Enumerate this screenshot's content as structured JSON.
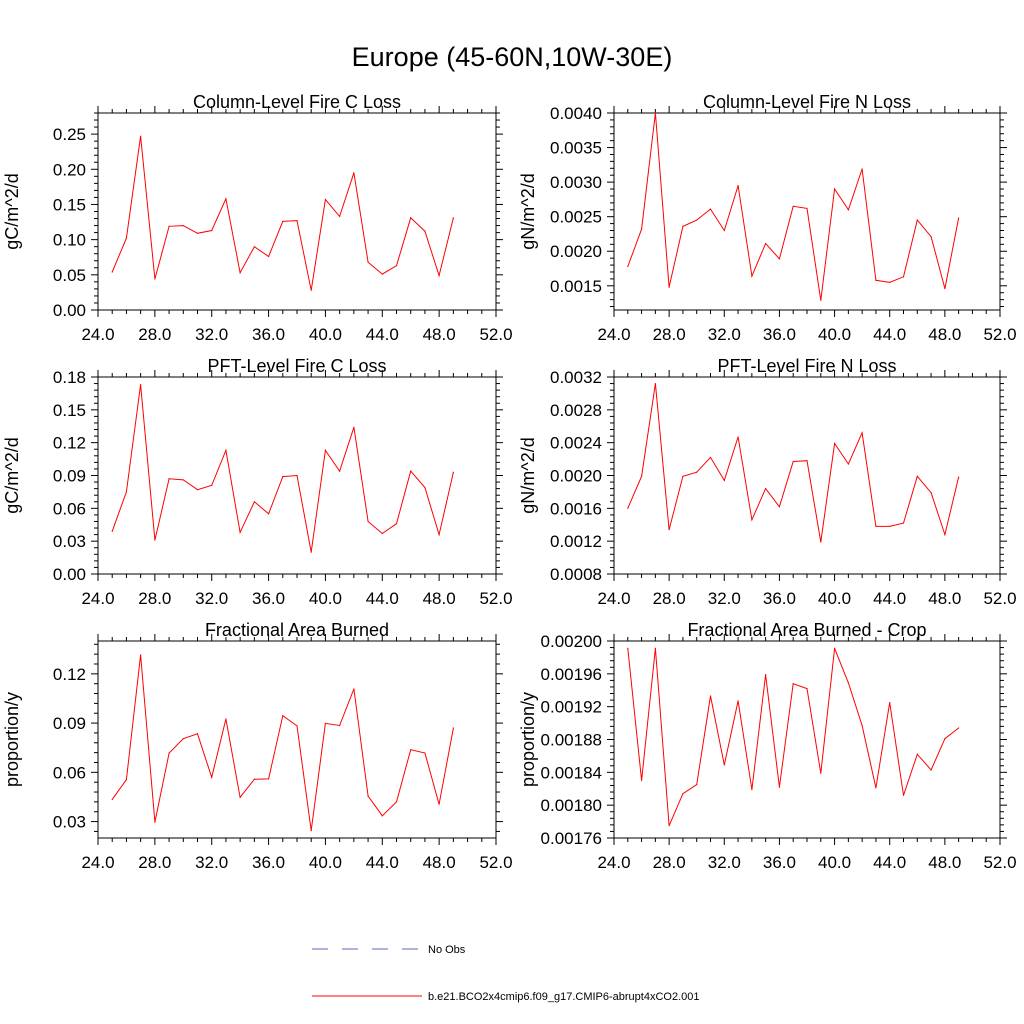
{
  "figure": {
    "title": "Europe (45-60N,10W-30E)",
    "legend": [
      {
        "label": "No Obs",
        "style": "dashed",
        "color": "#5b6bbf"
      },
      {
        "label": "b.e21.BCO2x4cmip6.f09_g17.CMIP6-abrupt4xCO2.001",
        "style": "solid",
        "color": "#ff0000"
      }
    ]
  },
  "chart_data": [
    {
      "type": "line",
      "title": "Column-Level Fire C Loss",
      "ylabel": "gC/m^2/d",
      "xlim": [
        24,
        52
      ],
      "ylim": [
        0,
        0.28
      ],
      "xticks": [
        24,
        28,
        32,
        36,
        40,
        44,
        48,
        52
      ],
      "xtick_labels": [
        "24.0",
        "28.0",
        "32.0",
        "36.0",
        "40.0",
        "44.0",
        "48.0",
        "52.0"
      ],
      "yticks": [
        0,
        0.05,
        0.1,
        0.15,
        0.2,
        0.25
      ],
      "ytick_labels": [
        "0.00",
        "0.05",
        "0.10",
        "0.15",
        "0.20",
        "0.25"
      ],
      "series": [
        {
          "name": "b.e21.BCO2x4cmip6.f09_g17.CMIP6-abrupt4xCO2.001",
          "color": "#ff0000",
          "x": [
            25,
            26,
            27,
            28,
            29,
            30,
            31,
            32,
            33,
            34,
            35,
            36,
            37,
            38,
            39,
            40,
            41,
            42,
            43,
            44,
            45,
            46,
            47,
            48,
            49
          ],
          "values": [
            0.054,
            0.102,
            0.247,
            0.044,
            0.119,
            0.12,
            0.109,
            0.113,
            0.158,
            0.053,
            0.09,
            0.076,
            0.126,
            0.127,
            0.028,
            0.157,
            0.133,
            0.195,
            0.068,
            0.051,
            0.063,
            0.131,
            0.112,
            0.049,
            0.131
          ]
        }
      ]
    },
    {
      "type": "line",
      "title": "Column-Level Fire N Loss",
      "ylabel": "gN/m^2/d",
      "xlim": [
        24,
        52
      ],
      "ylim": [
        0.00115,
        0.004
      ],
      "xticks": [
        24,
        28,
        32,
        36,
        40,
        44,
        48,
        52
      ],
      "xtick_labels": [
        "24.0",
        "28.0",
        "32.0",
        "36.0",
        "40.0",
        "44.0",
        "48.0",
        "52.0"
      ],
      "yticks": [
        0.0015,
        0.002,
        0.0025,
        0.003,
        0.0035,
        0.004
      ],
      "ytick_labels": [
        "0.0015",
        "0.0020",
        "0.0025",
        "0.0030",
        "0.0035",
        "0.0040"
      ],
      "series": [
        {
          "name": "b.e21.BCO2x4cmip6.f09_g17.CMIP6-abrupt4xCO2.001",
          "color": "#ff0000",
          "x": [
            25,
            26,
            27,
            28,
            29,
            30,
            31,
            32,
            33,
            34,
            35,
            36,
            37,
            38,
            39,
            40,
            41,
            42,
            43,
            44,
            45,
            46,
            47,
            48,
            49
          ],
          "values": [
            0.00178,
            0.00232,
            0.004,
            0.00148,
            0.00236,
            0.00245,
            0.00261,
            0.0023,
            0.00295,
            0.00164,
            0.00211,
            0.00189,
            0.00265,
            0.00262,
            0.00129,
            0.0029,
            0.0026,
            0.00319,
            0.00158,
            0.00155,
            0.00163,
            0.00245,
            0.00221,
            0.00146,
            0.00248
          ]
        }
      ]
    },
    {
      "type": "line",
      "title": "PFT-Level Fire C Loss",
      "ylabel": "gC/m^2/d",
      "xlim": [
        24,
        52
      ],
      "ylim": [
        0,
        0.18
      ],
      "xticks": [
        24,
        28,
        32,
        36,
        40,
        44,
        48,
        52
      ],
      "xtick_labels": [
        "24.0",
        "28.0",
        "32.0",
        "36.0",
        "40.0",
        "44.0",
        "48.0",
        "52.0"
      ],
      "yticks": [
        0,
        0.03,
        0.06,
        0.09,
        0.12,
        0.15,
        0.18
      ],
      "ytick_labels": [
        "0.00",
        "0.03",
        "0.06",
        "0.09",
        "0.12",
        "0.15",
        "0.18"
      ],
      "series": [
        {
          "name": "b.e21.BCO2x4cmip6.f09_g17.CMIP6-abrupt4xCO2.001",
          "color": "#ff0000",
          "x": [
            25,
            26,
            27,
            28,
            29,
            30,
            31,
            32,
            33,
            34,
            35,
            36,
            37,
            38,
            39,
            40,
            41,
            42,
            43,
            44,
            45,
            46,
            47,
            48,
            49
          ],
          "values": [
            0.039,
            0.075,
            0.173,
            0.031,
            0.087,
            0.086,
            0.077,
            0.081,
            0.113,
            0.038,
            0.066,
            0.055,
            0.089,
            0.09,
            0.02,
            0.113,
            0.094,
            0.134,
            0.048,
            0.037,
            0.046,
            0.094,
            0.079,
            0.036,
            0.093
          ]
        }
      ]
    },
    {
      "type": "line",
      "title": "PFT-Level Fire N Loss",
      "ylabel": "gN/m^2/d",
      "xlim": [
        24,
        52
      ],
      "ylim": [
        0.0008,
        0.0032
      ],
      "xticks": [
        24,
        28,
        32,
        36,
        40,
        44,
        48,
        52
      ],
      "xtick_labels": [
        "24.0",
        "28.0",
        "32.0",
        "36.0",
        "40.0",
        "44.0",
        "48.0",
        "52.0"
      ],
      "yticks": [
        0.0008,
        0.0012,
        0.0016,
        0.002,
        0.0024,
        0.0028,
        0.0032
      ],
      "ytick_labels": [
        "0.0008",
        "0.0012",
        "0.0016",
        "0.0020",
        "0.0024",
        "0.0028",
        "0.0032"
      ],
      "series": [
        {
          "name": "b.e21.BCO2x4cmip6.f09_g17.CMIP6-abrupt4xCO2.001",
          "color": "#ff0000",
          "x": [
            25,
            26,
            27,
            28,
            29,
            30,
            31,
            32,
            33,
            34,
            35,
            36,
            37,
            38,
            39,
            40,
            41,
            42,
            43,
            44,
            45,
            46,
            47,
            48,
            49
          ],
          "values": [
            0.0016,
            0.00199,
            0.00312,
            0.00134,
            0.00199,
            0.00204,
            0.00222,
            0.00194,
            0.00247,
            0.00146,
            0.00184,
            0.00162,
            0.00217,
            0.00218,
            0.00119,
            0.00239,
            0.00214,
            0.00252,
            0.00138,
            0.00138,
            0.00142,
            0.00199,
            0.00179,
            0.00128,
            0.00198
          ]
        }
      ]
    },
    {
      "type": "line",
      "title": "Fractional Area Burned",
      "ylabel": "proportion/y",
      "xlim": [
        24,
        52
      ],
      "ylim": [
        0.02,
        0.14
      ],
      "xticks": [
        24,
        28,
        32,
        36,
        40,
        44,
        48,
        52
      ],
      "xtick_labels": [
        "24.0",
        "28.0",
        "32.0",
        "36.0",
        "40.0",
        "44.0",
        "48.0",
        "52.0"
      ],
      "yticks": [
        0.03,
        0.06,
        0.09,
        0.12
      ],
      "ytick_labels": [
        "0.03",
        "0.06",
        "0.09",
        "0.12"
      ],
      "series": [
        {
          "name": "b.e21.BCO2x4cmip6.f09_g17.CMIP6-abrupt4xCO2.001",
          "color": "#ff0000",
          "x": [
            25,
            26,
            27,
            28,
            29,
            30,
            31,
            32,
            33,
            34,
            35,
            36,
            37,
            38,
            39,
            40,
            41,
            42,
            43,
            44,
            45,
            46,
            47,
            48,
            49
          ],
          "values": [
            0.0435,
            0.0555,
            0.1315,
            0.0297,
            0.0717,
            0.0805,
            0.0835,
            0.057,
            0.0925,
            0.0448,
            0.0558,
            0.056,
            0.0945,
            0.0883,
            0.0245,
            0.0898,
            0.0885,
            0.1108,
            0.0455,
            0.0335,
            0.042,
            0.0738,
            0.0718,
            0.0406,
            0.087
          ]
        }
      ]
    },
    {
      "type": "line",
      "title": "Fractional Area Burned - Crop",
      "ylabel": "proportion/y",
      "xlim": [
        24,
        52
      ],
      "ylim": [
        0.00176,
        0.002
      ],
      "xticks": [
        24,
        28,
        32,
        36,
        40,
        44,
        48,
        52
      ],
      "xtick_labels": [
        "24.0",
        "28.0",
        "32.0",
        "36.0",
        "40.0",
        "44.0",
        "48.0",
        "52.0"
      ],
      "yticks": [
        0.00176,
        0.0018,
        0.00184,
        0.00188,
        0.00192,
        0.00196,
        0.002
      ],
      "ytick_labels": [
        "0.00176",
        "0.00180",
        "0.00184",
        "0.00188",
        "0.00192",
        "0.00196",
        "0.00200"
      ],
      "series": [
        {
          "name": "b.e21.BCO2x4cmip6.f09_g17.CMIP6-abrupt4xCO2.001",
          "color": "#ff0000",
          "x": [
            25,
            26,
            27,
            28,
            29,
            30,
            31,
            32,
            33,
            34,
            35,
            36,
            37,
            38,
            39,
            40,
            41,
            42,
            43,
            44,
            45,
            46,
            47,
            48,
            49
          ],
          "values": [
            0.001991,
            0.00183,
            0.001991,
            0.001775,
            0.001814,
            0.001825,
            0.001933,
            0.001849,
            0.001927,
            0.001819,
            0.001959,
            0.001822,
            0.001948,
            0.001942,
            0.001839,
            0.001991,
            0.001949,
            0.001897,
            0.001821,
            0.001925,
            0.001812,
            0.001862,
            0.001843,
            0.001881,
            0.001894
          ]
        }
      ]
    }
  ]
}
